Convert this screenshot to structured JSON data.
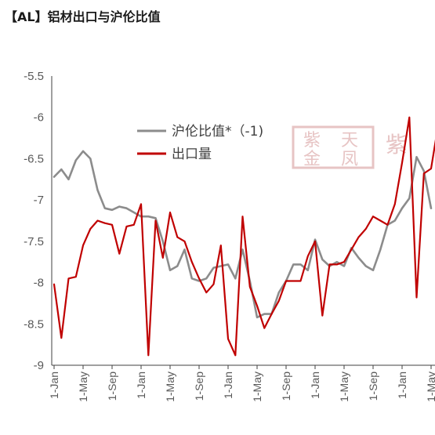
{
  "page_title": "【AL】铝材出口与沪伦比值",
  "watermark": {
    "text": "紫天金凤",
    "color": "#e7c4c4"
  },
  "chart_data": {
    "type": "line",
    "ylim": [
      -9,
      -5.5
    ],
    "y_ticks": [
      -5.5,
      -6,
      -6.5,
      -7,
      -7.5,
      -8,
      -8.5,
      -9
    ],
    "y_tick_labels": [
      "-5.5",
      "-6",
      "-6.5",
      "-7",
      "-7.5",
      "-8",
      "-8.5",
      "-9"
    ],
    "x_tick_labels": [
      "1-Jan",
      "1-May",
      "1-Sep",
      "1-Jan",
      "1-May",
      "1-Sep",
      "1-Jan",
      "1-May",
      "1-Sep",
      "1-Jan",
      "1-May",
      "1-Sep",
      "1-Jan",
      "1-May"
    ],
    "x_tick_index": [
      0,
      4,
      8,
      12,
      16,
      20,
      24,
      28,
      32,
      36,
      40,
      44,
      48,
      52
    ],
    "legend_position": "top-center",
    "series": [
      {
        "name": "沪伦比值*（-1)",
        "color": "#8c8c8c",
        "values": [
          -6.72,
          -6.63,
          -6.75,
          -6.52,
          -6.41,
          -6.5,
          -6.88,
          -7.1,
          -7.12,
          -7.08,
          -7.1,
          -7.15,
          -7.2,
          -7.2,
          -7.22,
          -7.5,
          -7.85,
          -7.8,
          -7.6,
          -7.95,
          -7.98,
          -7.95,
          -7.82,
          -7.8,
          -7.78,
          -7.95,
          -7.6,
          -7.98,
          -8.42,
          -8.38,
          -8.38,
          -8.12,
          -7.98,
          -7.78,
          -7.78,
          -7.85,
          -7.48,
          -7.72,
          -7.8,
          -7.75,
          -7.8,
          -7.58,
          -7.7,
          -7.8,
          -7.85,
          -7.6,
          -7.3,
          -7.25,
          -7.1,
          -6.98,
          -6.48,
          -6.65,
          -7.1
        ]
      },
      {
        "name": "出口量",
        "color": "#c00000",
        "values": [
          -8.02,
          -8.67,
          -7.95,
          -7.93,
          -7.55,
          -7.35,
          -7.25,
          -7.28,
          -7.3,
          -7.65,
          -7.32,
          -7.3,
          -7.05,
          -8.88,
          -7.25,
          -7.7,
          -7.15,
          -7.45,
          -7.5,
          -7.75,
          -7.95,
          -8.12,
          -8.02,
          -7.55,
          -8.68,
          -8.88,
          -7.2,
          -8.05,
          -8.28,
          -8.55,
          -8.38,
          -8.22,
          -7.98,
          -7.98,
          -7.98,
          -7.68,
          -7.5,
          -8.4,
          -7.78,
          -7.78,
          -7.75,
          -7.6,
          -7.45,
          -7.35,
          -7.2,
          -7.25,
          -7.3,
          -7.05,
          -6.55,
          -6.0,
          -8.18,
          -6.68,
          -6.62,
          -6.08
        ]
      }
    ]
  }
}
